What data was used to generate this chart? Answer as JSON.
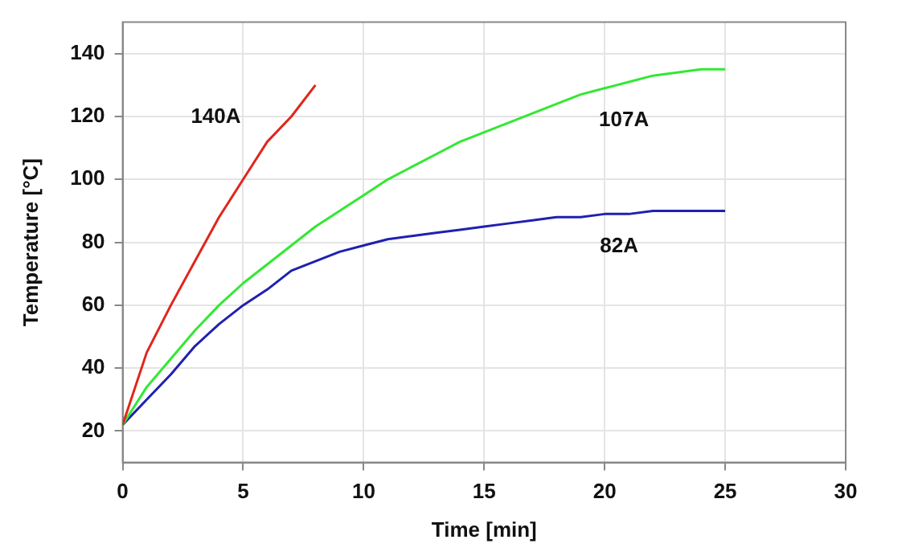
{
  "chart_data": {
    "type": "line",
    "xlabel": "Time [min]",
    "ylabel": "Temperature [°C]",
    "xlim": [
      0,
      30
    ],
    "xticks": [
      0,
      5,
      10,
      15,
      20,
      25,
      30
    ],
    "ylim": [
      10,
      150
    ],
    "yticks": [
      20,
      40,
      60,
      80,
      100,
      120,
      140
    ],
    "grid": true,
    "marker": "none",
    "line_style": "solid",
    "series": [
      {
        "name": "140A",
        "color": "#e0261c",
        "x": [
          0,
          1,
          2,
          3,
          4,
          5,
          6,
          7,
          8
        ],
        "values": [
          22,
          45,
          60,
          74,
          88,
          100,
          112,
          120,
          130
        ]
      },
      {
        "name": "107A",
        "color": "#33e833",
        "x": [
          0,
          1,
          2,
          3,
          4,
          5,
          6,
          7,
          8,
          9,
          10,
          11,
          12,
          13,
          14,
          15,
          16,
          17,
          18,
          19,
          20,
          21,
          22,
          23,
          24,
          25
        ],
        "values": [
          22,
          34,
          43,
          52,
          60,
          67,
          73,
          79,
          85,
          90,
          95,
          100,
          104,
          108,
          112,
          115,
          118,
          121,
          124,
          127,
          129,
          131,
          133,
          134,
          135,
          135
        ]
      },
      {
        "name": "82A",
        "color": "#2020b0",
        "x": [
          0,
          1,
          2,
          3,
          4,
          5,
          6,
          7,
          8,
          9,
          10,
          11,
          12,
          13,
          14,
          15,
          16,
          17,
          18,
          19,
          20,
          21,
          22,
          23,
          24,
          25
        ],
        "values": [
          22,
          30,
          38,
          47,
          54,
          60,
          65,
          71,
          74,
          77,
          79,
          81,
          82,
          83,
          84,
          85,
          86,
          87,
          88,
          88,
          89,
          89,
          90,
          90,
          90,
          90
        ]
      }
    ]
  }
}
